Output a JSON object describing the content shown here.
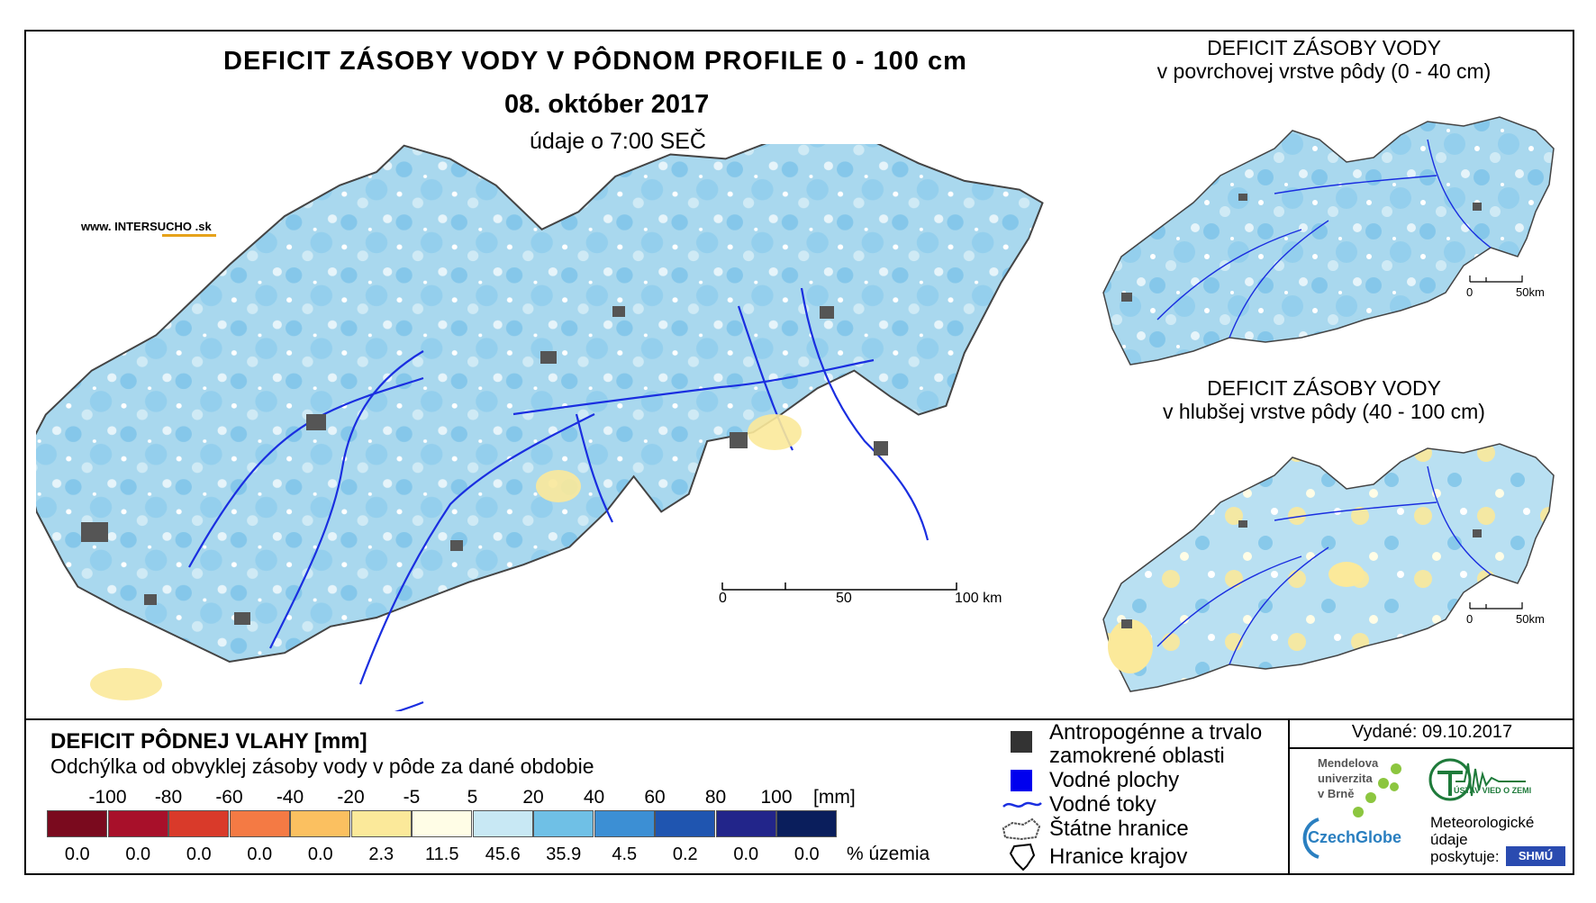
{
  "main": {
    "title": "DEFICIT ZÁSOBY VODY V PÔDNOM PROFILE 0 - 100 cm",
    "date": "08. október 2017",
    "time_note": "údaje o 7:00 SEČ",
    "website": "www. INTERSUCHO .sk",
    "scale": {
      "t0": "0",
      "t50": "50",
      "t100": "100 km"
    }
  },
  "mini_top": {
    "title_line1": "DEFICIT ZÁSOBY VODY",
    "title_line2": "v povrchovej vrstve pôdy (0 - 40 cm)",
    "scale": {
      "t0": "0",
      "t50": "50km"
    }
  },
  "mini_bottom": {
    "title_line1": "DEFICIT ZÁSOBY VODY",
    "title_line2": "v hlubšej vrstve pôdy (40 - 100 cm)",
    "scale": {
      "t0": "0",
      "t50": "50km"
    }
  },
  "legend": {
    "title": "DEFICIT PÔDNEJ VLAHY [mm]",
    "subtitle": "Odchýlka od obvyklej zásoby vody v pôde za dané obdobie",
    "ticks": [
      "-100",
      "-80",
      "-60",
      "-40",
      "-20",
      "-5",
      "5",
      "20",
      "40",
      "60",
      "80",
      "100"
    ],
    "unit": "[mm]",
    "colors": [
      "#7a0a1e",
      "#a8102a",
      "#d93a2a",
      "#f47a44",
      "#fbc060",
      "#fbe99a",
      "#fffde6",
      "#c8e8f4",
      "#6fc0e6",
      "#3c8fd4",
      "#1f55b0",
      "#22258a",
      "#0a1e5c"
    ],
    "percentages": [
      "0.0",
      "0.0",
      "0.0",
      "0.0",
      "0.0",
      "2.3",
      "11.5",
      "45.6",
      "35.9",
      "4.5",
      "0.2",
      "0.0",
      "0.0"
    ],
    "pct_label": "% územia"
  },
  "symbols": {
    "urban_line1": "Antropogénne a trvalo",
    "urban_line2": "zamokrené oblasti",
    "water_bodies": "Vodné plochy",
    "streams": "Vodné toky",
    "state_border": "Štátne hranice",
    "region_border": "Hranice krajov"
  },
  "issued": "Vydané: 09.10.2017",
  "credits": {
    "mendel_line1": "Mendelova",
    "mendel_line2": "univerzita",
    "mendel_line3": "v Brně",
    "czechglobe": "CzechGlobe",
    "ustav": "ÚSTAV VIED O ZEMI",
    "meteo_line1": "Meteorologické",
    "meteo_line2": "údaje",
    "meteo_line3": "poskytuje:",
    "shmu": "SHMÚ"
  }
}
